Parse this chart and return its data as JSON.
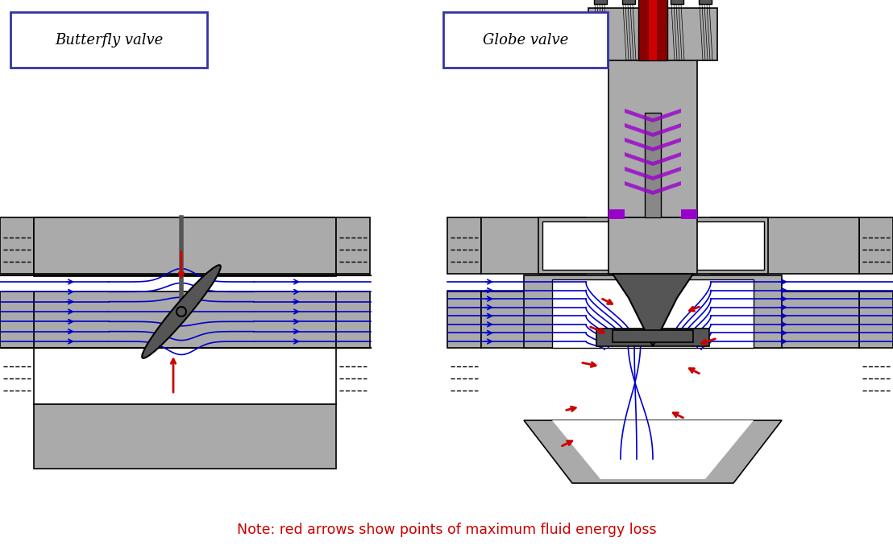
{
  "bg_color": "#ffffff",
  "gray_valve": "#a0a0a0",
  "dark_gray": "#606060",
  "darker_gray": "#404040",
  "black": "#000000",
  "blue": "#0000cc",
  "red": "#cc0000",
  "dark_red": "#8b0000",
  "purple": "#9900cc",
  "title1": "Butterfly valve",
  "title2": "Globe valve",
  "note": "Note: red arrows show points of maximum fluid energy loss",
  "note_color": "#cc0000",
  "label_box_color": "#3333aa"
}
